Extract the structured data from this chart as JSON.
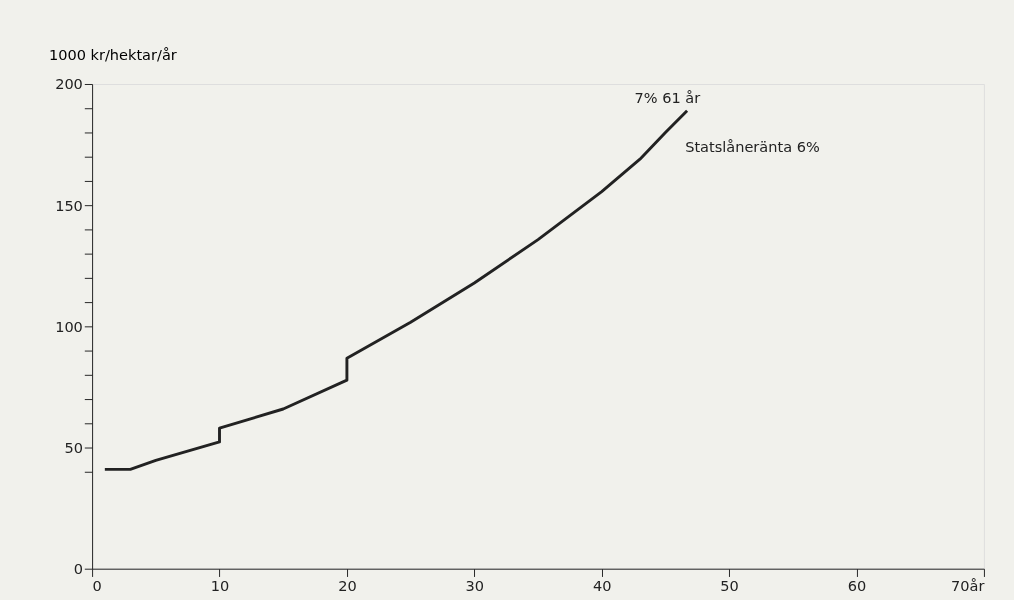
{
  "chart_data": {
    "type": "line",
    "ylabel": "1000 kr/hektar/år",
    "x": [
      1,
      3,
      5,
      10,
      10,
      15,
      20,
      20,
      25,
      30,
      35,
      40,
      43,
      45,
      46.7
    ],
    "series": [
      {
        "color": "#222222",
        "values": [
          41,
          41,
          44.7,
          52.3,
          58,
          65.9,
          77.8,
          86.8,
          101.7,
          117.9,
          135.8,
          155.6,
          169,
          180,
          189
        ]
      }
    ],
    "xlim": [
      0,
      70
    ],
    "xticks": [
      0,
      10,
      20,
      30,
      40,
      50,
      60,
      {
        "value": 70,
        "label": "70år"
      }
    ],
    "ylim": [
      0,
      200
    ],
    "yticks": [
      0,
      {
        "value": 40,
        "label": null
      },
      50,
      {
        "value": 60,
        "label": null
      },
      {
        "value": 70,
        "label": null
      },
      {
        "value": 80,
        "label": null
      },
      {
        "value": 90,
        "label": null
      },
      100,
      {
        "value": 110,
        "label": null
      },
      {
        "value": 120,
        "label": null
      },
      {
        "value": 130,
        "label": null
      },
      {
        "value": 140,
        "label": null
      },
      150,
      {
        "value": 160,
        "label": null
      },
      {
        "value": 170,
        "label": null
      },
      {
        "value": 180,
        "label": null
      },
      {
        "value": 190,
        "label": null
      },
      200
    ],
    "annotations": [
      "7% 61 år",
      "Statslåneränta 6%"
    ],
    "grid": false,
    "marker": "none",
    "line_style": "solid"
  }
}
